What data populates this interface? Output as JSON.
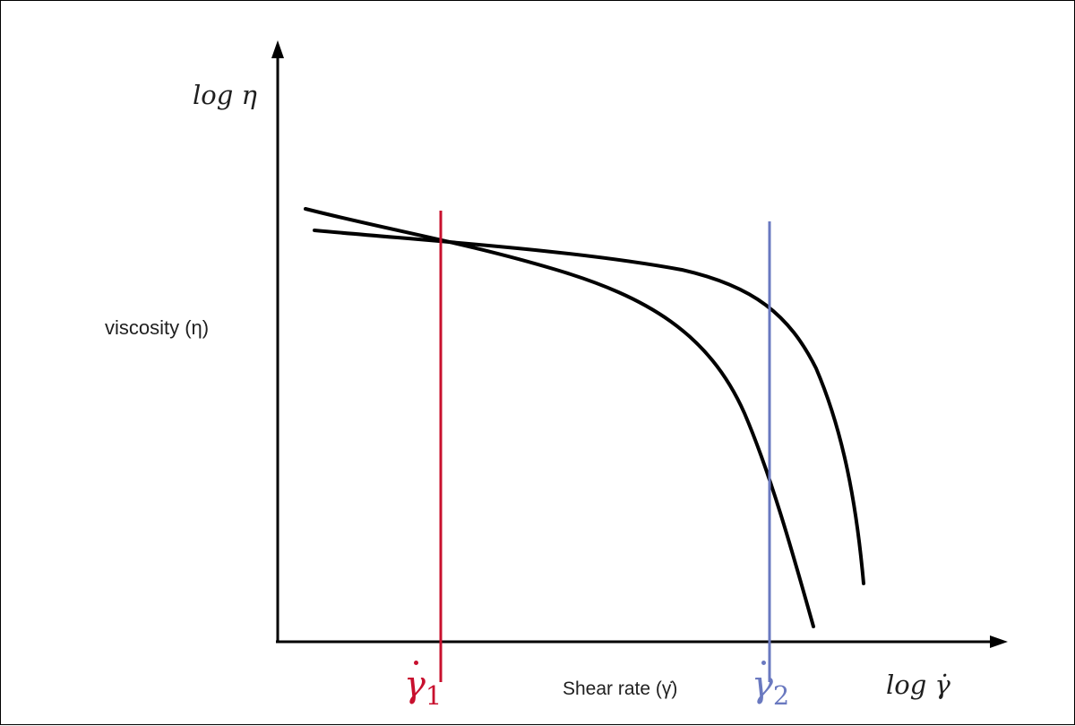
{
  "diagram": {
    "y_axis_label": "log η",
    "y_axis_side_label": "viscosity (η)",
    "x_axis_label": "log γ̇",
    "x_axis_side_label": "Shear rate (γ̇)",
    "markers": [
      {
        "label_symbol": "γ",
        "label_subscript": "1",
        "color": "#c8102e"
      },
      {
        "label_symbol": "γ",
        "label_subscript": "2",
        "color": "#6a79c0"
      }
    ],
    "curves": [
      {
        "id": "curve-a",
        "description_visible": false
      },
      {
        "id": "curve-b",
        "description_visible": false
      }
    ],
    "colors": {
      "axis": "#000000",
      "curve": "#000000",
      "marker1": "#c8102e",
      "marker2": "#6a79c0"
    }
  }
}
